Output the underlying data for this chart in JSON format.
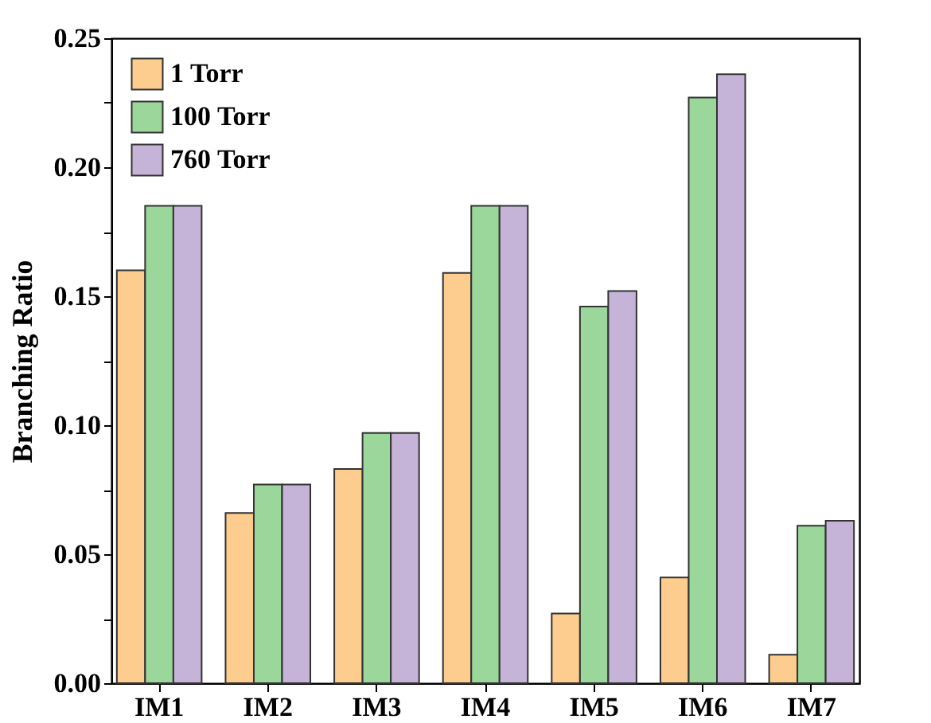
{
  "chart_data": {
    "type": "bar",
    "ylabel": "Branching Ratio",
    "categories": [
      "IM1",
      "IM2",
      "IM3",
      "IM4",
      "IM5",
      "IM6",
      "IM7"
    ],
    "series": [
      {
        "name": "1 Torr",
        "color": "#fdcc8f",
        "values": [
          0.16,
          0.066,
          0.083,
          0.159,
          0.027,
          0.041,
          0.011
        ]
      },
      {
        "name": "100 Torr",
        "color": "#9bd69a",
        "values": [
          0.185,
          0.077,
          0.097,
          0.185,
          0.146,
          0.227,
          0.061
        ]
      },
      {
        "name": "760 Torr",
        "color": "#c5b3d8",
        "values": [
          0.185,
          0.077,
          0.097,
          0.185,
          0.152,
          0.236,
          0.063
        ]
      }
    ],
    "ylim": [
      0,
      0.25
    ],
    "yticks": [
      {
        "value": 0,
        "label": "0.00"
      },
      {
        "value": 0.025,
        "label": null
      },
      {
        "value": 0.05,
        "label": "0.05"
      },
      {
        "value": 0.075,
        "label": null
      },
      {
        "value": 0.1,
        "label": "0.10"
      },
      {
        "value": 0.125,
        "label": null
      },
      {
        "value": 0.15,
        "label": "0.15"
      },
      {
        "value": 0.175,
        "label": null
      },
      {
        "value": 0.2,
        "label": "0.20"
      },
      {
        "value": 0.225,
        "label": null
      },
      {
        "value": 0.25,
        "label": "0.25"
      }
    ],
    "grid": false,
    "legend": "top left"
  }
}
